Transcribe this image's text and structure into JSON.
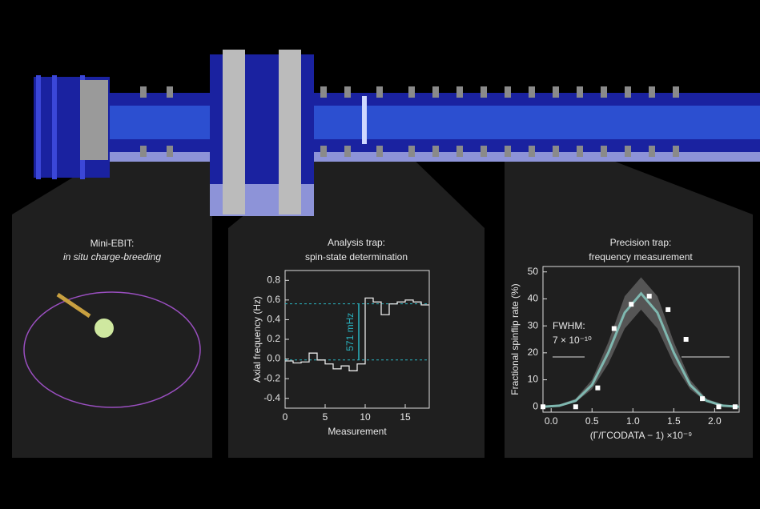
{
  "diagram": {
    "title": "Mini-EBIT:",
    "subtitle": "in situ charge-breeding"
  },
  "chart_data": [
    {
      "type": "step",
      "title": "Analysis trap:",
      "subtitle": "spin-state determination",
      "x_label": "Measurement",
      "y_label": "Axial frequency (Hz)",
      "x": [
        0,
        1,
        2,
        3,
        4,
        5,
        6,
        7,
        8,
        9,
        10,
        11,
        12,
        13,
        14,
        15,
        16,
        17
      ],
      "values": [
        -0.02,
        -0.04,
        -0.03,
        0.06,
        -0.01,
        -0.05,
        -0.1,
        -0.07,
        -0.12,
        -0.05,
        0.62,
        0.58,
        0.45,
        0.56,
        0.58,
        0.6,
        0.58,
        0.55
      ],
      "color": "#e8e8e8",
      "xlim": [
        0,
        18
      ],
      "xticks": [
        0,
        5,
        10,
        15
      ],
      "ylim": [
        -0.5,
        0.9
      ],
      "yticks": [
        -0.4,
        -0.2,
        {
          "value": 0,
          "label": "0.0"
        },
        0.2,
        0.4,
        0.6,
        0.8
      ],
      "reference_lines": [
        -0.01,
        0.561
      ],
      "reference_color": "#2ab3c0",
      "annotation": {
        "text": "571 mHz",
        "value": 571
      }
    },
    {
      "type": "scatter",
      "title": "Precision trap:",
      "subtitle": "frequency measurement",
      "x_label": "(Γ/ΓCODATA − 1) ×10⁻⁹",
      "y_label": "Fractional spinflip rate (%)",
      "x": [
        -0.1,
        0.3,
        0.57,
        0.77,
        0.98,
        1.2,
        1.43,
        1.65,
        1.85,
        2.05,
        2.25
      ],
      "values": [
        0,
        0,
        7,
        29,
        38,
        41,
        36,
        25,
        3,
        0,
        0
      ],
      "color": "#ffffff",
      "fit": {
        "x": [
          -0.1,
          0.1,
          0.3,
          0.5,
          0.7,
          0.9,
          1.1,
          1.3,
          1.5,
          1.7,
          1.9,
          2.1,
          2.3
        ],
        "values": [
          0,
          0.4,
          2.2,
          8.1,
          20.1,
          34.9,
          42,
          34.9,
          20.1,
          8.1,
          2.2,
          0.4,
          0
        ],
        "low": [
          0,
          0.3,
          1.8,
          6.5,
          16,
          29,
          36,
          29,
          16,
          6.5,
          1.8,
          0.3,
          0
        ],
        "high": [
          0.3,
          0.8,
          3,
          10,
          24,
          41,
          48,
          41,
          24,
          10,
          3,
          0.8,
          0.3
        ],
        "color": "#7fb8b0",
        "band_color": "#555555"
      },
      "xlim": [
        -0.1,
        2.3
      ],
      "xticks": [
        {
          "value": 0,
          "label": "0.0"
        },
        0.5,
        {
          "value": 1,
          "label": "1.0"
        },
        1.5,
        {
          "value": 2,
          "label": "2.0"
        }
      ],
      "ylim": [
        -2,
        52
      ],
      "yticks": [
        0,
        10,
        20,
        30,
        40,
        50
      ],
      "annotation": {
        "text": "FWHM:",
        "subtext": "7 × 10⁻¹⁰"
      }
    }
  ]
}
